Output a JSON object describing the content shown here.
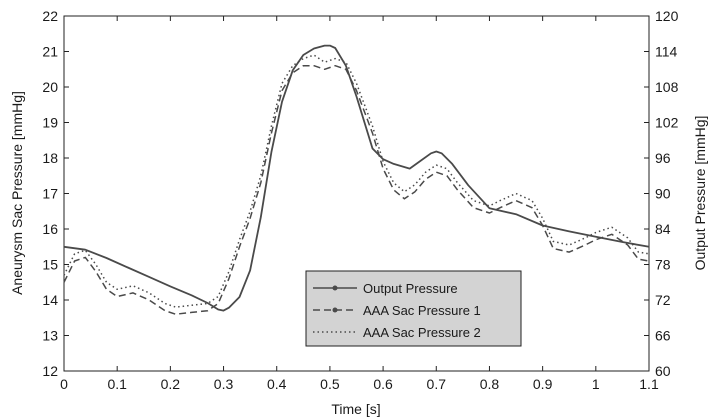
{
  "chart_data": {
    "type": "line",
    "xlabel": "Time [s]",
    "ylabel": "Aneurysm Sac Pressure [mmHg]",
    "ylabel_right": "Output Pressure [mmHg]",
    "xlim": [
      0,
      1.1
    ],
    "ylim": [
      12,
      22
    ],
    "ylim_right": [
      60,
      120
    ],
    "x_ticks": [
      0,
      0.1,
      0.2,
      0.3,
      0.4,
      0.5,
      0.6,
      0.7,
      0.8,
      0.9,
      1,
      1.1
    ],
    "x_tick_labels": [
      "0",
      "0.1",
      "0.2",
      "0.3",
      "0.4",
      "0.5",
      "0.6",
      "0.7",
      "0.8",
      "0.9",
      "1",
      "1.1"
    ],
    "y_ticks": [
      12,
      13,
      14,
      15,
      16,
      17,
      18,
      19,
      20,
      21,
      22
    ],
    "y_tick_labels": [
      "12",
      "13",
      "14",
      "15",
      "16",
      "17",
      "18",
      "19",
      "20",
      "21",
      "22"
    ],
    "y_ticks_right": [
      60,
      66,
      72,
      78,
      84,
      90,
      96,
      102,
      108,
      114,
      120
    ],
    "y_tick_labels_right": [
      "60",
      "66",
      "72",
      "78",
      "84",
      "90",
      "96",
      "102",
      "108",
      "114",
      "120"
    ],
    "grid": false,
    "legend_position": "bottom-center",
    "colors": {
      "line": "#4a4a4a",
      "legend_bg": "#d3d3d3"
    },
    "series": [
      {
        "name": "Output Pressure",
        "style": "solid",
        "axis": "right",
        "x": [
          0,
          0.04,
          0.08,
          0.12,
          0.16,
          0.2,
          0.24,
          0.27,
          0.29,
          0.3,
          0.31,
          0.33,
          0.35,
          0.37,
          0.39,
          0.41,
          0.43,
          0.45,
          0.47,
          0.49,
          0.5,
          0.51,
          0.53,
          0.55,
          0.58,
          0.6,
          0.62,
          0.65,
          0.67,
          0.69,
          0.7,
          0.71,
          0.73,
          0.76,
          0.8,
          0.85,
          0.9,
          0.95,
          1.0,
          1.05,
          1.1
        ],
        "y": [
          81,
          80.5,
          79.1,
          77.5,
          75.9,
          74.3,
          72.8,
          71.5,
          70.4,
          70.2,
          70.7,
          72.5,
          77,
          86,
          97,
          105.5,
          110.8,
          113.4,
          114.5,
          115,
          115,
          114.6,
          111.6,
          106.4,
          97.6,
          95.8,
          95,
          94.2,
          95.5,
          96.8,
          97.1,
          96.8,
          95,
          91.4,
          87.5,
          86.5,
          84.6,
          83.6,
          82.7,
          81.8,
          81
        ]
      },
      {
        "name": "AAA Sac Pressure 1",
        "style": "dashed",
        "axis": "left",
        "x": [
          0,
          0.02,
          0.04,
          0.06,
          0.08,
          0.1,
          0.13,
          0.16,
          0.19,
          0.21,
          0.24,
          0.27,
          0.29,
          0.31,
          0.33,
          0.35,
          0.37,
          0.39,
          0.41,
          0.43,
          0.45,
          0.47,
          0.49,
          0.51,
          0.53,
          0.55,
          0.58,
          0.6,
          0.62,
          0.64,
          0.66,
          0.68,
          0.7,
          0.72,
          0.74,
          0.77,
          0.8,
          0.82,
          0.85,
          0.88,
          0.9,
          0.92,
          0.95,
          0.98,
          1.0,
          1.03,
          1.06,
          1.08,
          1.1
        ],
        "y": [
          14.5,
          15.1,
          15.2,
          14.8,
          14.3,
          14.1,
          14.2,
          14.0,
          13.7,
          13.6,
          13.65,
          13.7,
          13.9,
          14.6,
          15.5,
          16.3,
          17.3,
          18.7,
          19.9,
          20.4,
          20.6,
          20.6,
          20.5,
          20.6,
          20.5,
          19.9,
          18.7,
          17.7,
          17.1,
          16.85,
          17.05,
          17.4,
          17.6,
          17.5,
          17.1,
          16.6,
          16.45,
          16.6,
          16.8,
          16.6,
          16.1,
          15.45,
          15.35,
          15.55,
          15.7,
          15.85,
          15.55,
          15.15,
          15.1
        ]
      },
      {
        "name": "AAA Sac Pressure 2",
        "style": "dotted",
        "axis": "left",
        "x": [
          0,
          0.02,
          0.04,
          0.06,
          0.08,
          0.1,
          0.13,
          0.16,
          0.19,
          0.21,
          0.24,
          0.27,
          0.29,
          0.31,
          0.33,
          0.35,
          0.37,
          0.39,
          0.41,
          0.43,
          0.45,
          0.47,
          0.49,
          0.51,
          0.53,
          0.55,
          0.58,
          0.6,
          0.62,
          0.64,
          0.66,
          0.68,
          0.7,
          0.72,
          0.74,
          0.77,
          0.8,
          0.82,
          0.85,
          0.88,
          0.9,
          0.92,
          0.95,
          0.98,
          1.0,
          1.03,
          1.06,
          1.08,
          1.1
        ],
        "y": [
          14.7,
          15.3,
          15.4,
          15.0,
          14.5,
          14.3,
          14.4,
          14.2,
          13.9,
          13.8,
          13.85,
          13.9,
          14.1,
          14.8,
          15.7,
          16.5,
          17.5,
          18.9,
          20.1,
          20.6,
          20.8,
          20.9,
          20.7,
          20.8,
          20.7,
          20.1,
          18.9,
          17.9,
          17.3,
          17.05,
          17.25,
          17.6,
          17.8,
          17.7,
          17.3,
          16.8,
          16.65,
          16.8,
          17.0,
          16.8,
          16.3,
          15.65,
          15.55,
          15.75,
          15.9,
          16.05,
          15.75,
          15.35,
          15.3
        ]
      }
    ]
  }
}
